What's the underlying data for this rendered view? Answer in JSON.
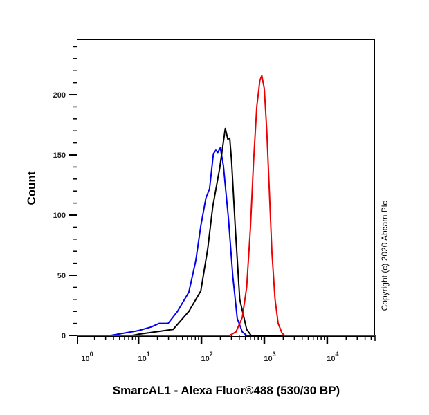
{
  "chart_data": {
    "type": "line",
    "title": "",
    "xlabel": "SmarcAL1 - Alexa Fluor®488 (530/30 BP)",
    "ylabel": "Count",
    "x_scale": "log10",
    "xlim_log10": [
      0.03,
      4.76
    ],
    "ylim": [
      0,
      246
    ],
    "grid": false,
    "x_ticks": [
      {
        "base": "10",
        "exp": "0",
        "log10": 0
      },
      {
        "base": "10",
        "exp": "1",
        "log10": 1
      },
      {
        "base": "10",
        "exp": "2",
        "log10": 2
      },
      {
        "base": "10",
        "exp": "3",
        "log10": 3
      },
      {
        "base": "10",
        "exp": "4",
        "log10": 4
      }
    ],
    "y_ticks": [
      "0",
      "50",
      "100",
      "150",
      "200"
    ],
    "y_tick_values": [
      0,
      50,
      100,
      150,
      200
    ],
    "series": [
      {
        "name": "blue",
        "color": "#0000ee",
        "x_log10": [
          0.56,
          1.0,
          1.2,
          1.33,
          1.47,
          1.62,
          1.8,
          1.91,
          1.99,
          2.07,
          2.13,
          2.19,
          2.23,
          2.26,
          2.3,
          2.35,
          2.43,
          2.5,
          2.57,
          2.65,
          2.72,
          4.76
        ],
        "y": [
          0,
          4,
          7,
          10,
          10,
          20,
          36,
          62,
          91,
          114,
          122,
          151,
          154,
          152,
          156,
          141,
          97,
          49,
          14,
          3,
          0,
          0
        ]
      },
      {
        "name": "black",
        "color": "#000000",
        "x_log10": [
          0.9,
          1.0,
          1.55,
          1.8,
          1.99,
          2.1,
          2.18,
          2.29,
          2.38,
          2.42,
          2.45,
          2.48,
          2.54,
          2.61,
          2.72,
          2.79,
          4.76
        ],
        "y": [
          0,
          1,
          5,
          20,
          37,
          72,
          107,
          139,
          172,
          163,
          164,
          145,
          88,
          30,
          5,
          0,
          0
        ]
      },
      {
        "name": "red",
        "color": "#ee0000",
        "x_log10": [
          0.03,
          2.45,
          2.55,
          2.65,
          2.72,
          2.78,
          2.83,
          2.88,
          2.93,
          2.96,
          3.0,
          3.04,
          3.08,
          3.12,
          3.17,
          3.22,
          3.28,
          3.32,
          4.76
        ],
        "y": [
          0,
          0,
          3,
          15,
          40,
          90,
          145,
          190,
          212,
          216,
          205,
          170,
          120,
          70,
          30,
          10,
          2,
          0,
          0
        ]
      }
    ]
  },
  "copyright": "Copyright (c) 2020 Abcam Plc"
}
